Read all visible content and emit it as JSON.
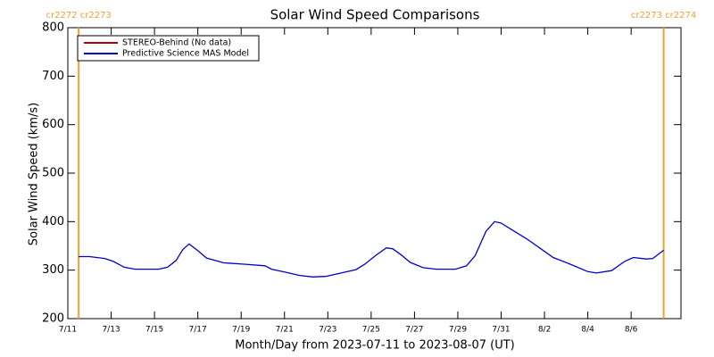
{
  "chart_data": {
    "type": "line",
    "title": "Solar Wind Speed Comparisons",
    "x_label": "Month/Day from 2023-07-11 to 2023-08-07 (UT)",
    "y_label": "Solar Wind Speed (km/s)",
    "x": [
      0.5,
      1.0,
      1.7,
      2.1,
      2.6,
      3.1,
      4.2,
      4.6,
      5.0,
      5.3,
      5.6,
      6.0,
      6.4,
      7.2,
      8.2,
      9.1,
      9.4,
      10.0,
      10.7,
      11.3,
      11.9,
      12.7,
      13.3,
      13.7,
      14.2,
      14.7,
      15.0,
      15.4,
      15.8,
      16.4,
      17.0,
      17.9,
      18.4,
      18.8,
      19.3,
      19.7,
      20.0,
      20.5,
      21.2,
      21.8,
      22.4,
      23.2,
      24.0,
      24.4,
      25.1,
      25.7,
      26.1,
      26.7,
      27.0,
      27.5
    ],
    "series": [
      {
        "name": "STEREO-Behind (No data)",
        "color": "#b00000",
        "values": [
          null,
          null,
          null,
          null,
          null,
          null,
          null,
          null,
          null,
          null,
          null,
          null,
          null,
          null,
          null,
          null,
          null,
          null,
          null,
          null,
          null,
          null,
          null,
          null,
          null,
          null,
          null,
          null,
          null,
          null,
          null,
          null,
          null,
          null,
          null,
          null,
          null,
          null,
          null,
          null,
          null,
          null,
          null,
          null,
          null,
          null,
          null,
          null,
          null,
          null
        ]
      },
      {
        "name": "Predictive Science MAS Model",
        "color": "#0000d0",
        "values": [
          328,
          328,
          324,
          318,
          306,
          302,
          302,
          306,
          320,
          342,
          354,
          340,
          325,
          315,
          312,
          309,
          302,
          296,
          289,
          286,
          287,
          295,
          301,
          312,
          330,
          346,
          344,
          331,
          316,
          305,
          302,
          302,
          309,
          330,
          380,
          400,
          397,
          383,
          364,
          345,
          326,
          312,
          297,
          294,
          299,
          318,
          326,
          323,
          324,
          341
        ]
      }
    ],
    "xlim": [
      0,
      28.3
    ],
    "xticks": [
      {
        "value": 0,
        "label": "7/11"
      },
      {
        "value": 2,
        "label": "7/13"
      },
      {
        "value": 4,
        "label": "7/15"
      },
      {
        "value": 6,
        "label": "7/17"
      },
      {
        "value": 8,
        "label": "7/19"
      },
      {
        "value": 10,
        "label": "7/21"
      },
      {
        "value": 12,
        "label": "7/23"
      },
      {
        "value": 14,
        "label": "7/25"
      },
      {
        "value": 16,
        "label": "7/27"
      },
      {
        "value": 18,
        "label": "7/29"
      },
      {
        "value": 20,
        "label": "7/31"
      },
      {
        "value": 22,
        "label": "8/2"
      },
      {
        "value": 24,
        "label": "8/4"
      },
      {
        "value": 26,
        "label": "8/6"
      }
    ],
    "ylim": [
      200,
      800
    ],
    "yticks": [
      200,
      300,
      400,
      500,
      600,
      700,
      800
    ],
    "markers": [
      {
        "x": 0.5,
        "label": "cr2272 cr2273",
        "color": "#f0a030"
      },
      {
        "x": 27.5,
        "label": "cr2273 cr2274",
        "color": "#f0a030"
      }
    ]
  }
}
